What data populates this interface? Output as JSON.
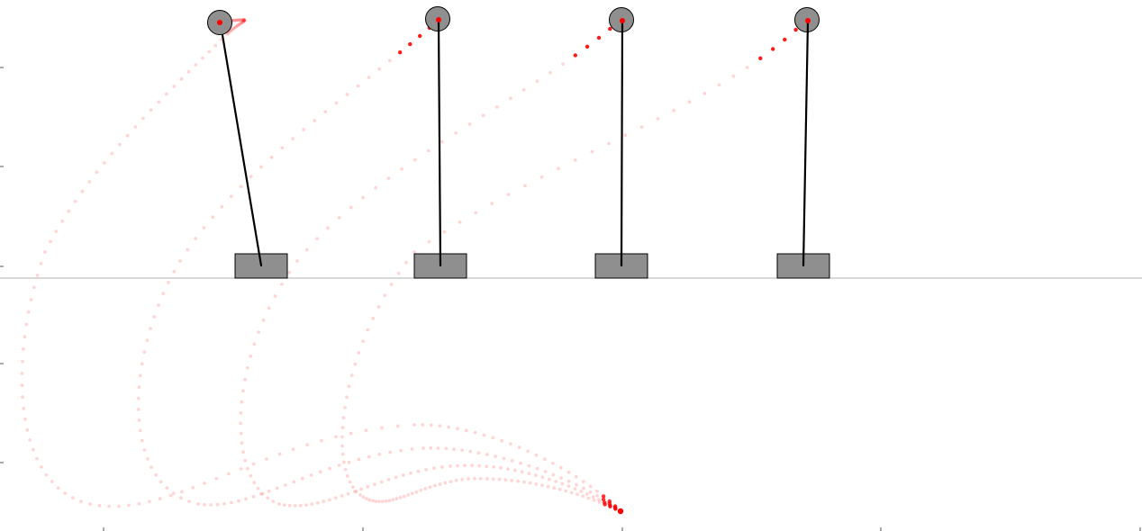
{
  "scene": {
    "kind": "cart-pole swing-up trajectories",
    "colors": {
      "background": "#ffffff",
      "ground_line": "#b0b0b0",
      "cart_fill": "#8f8f8f",
      "cart_stroke": "#000000",
      "pole": "#000000",
      "bob_fill": "#8f8f8f",
      "bob_stroke": "#000000",
      "trace": "#ff0000",
      "trace_dot": "#ff0000",
      "axis_tick": "#555555"
    },
    "pendulums": [
      {
        "id": "pendulum-1"
      },
      {
        "id": "pendulum-2"
      },
      {
        "id": "pendulum-3"
      },
      {
        "id": "pendulum-4"
      }
    ]
  }
}
